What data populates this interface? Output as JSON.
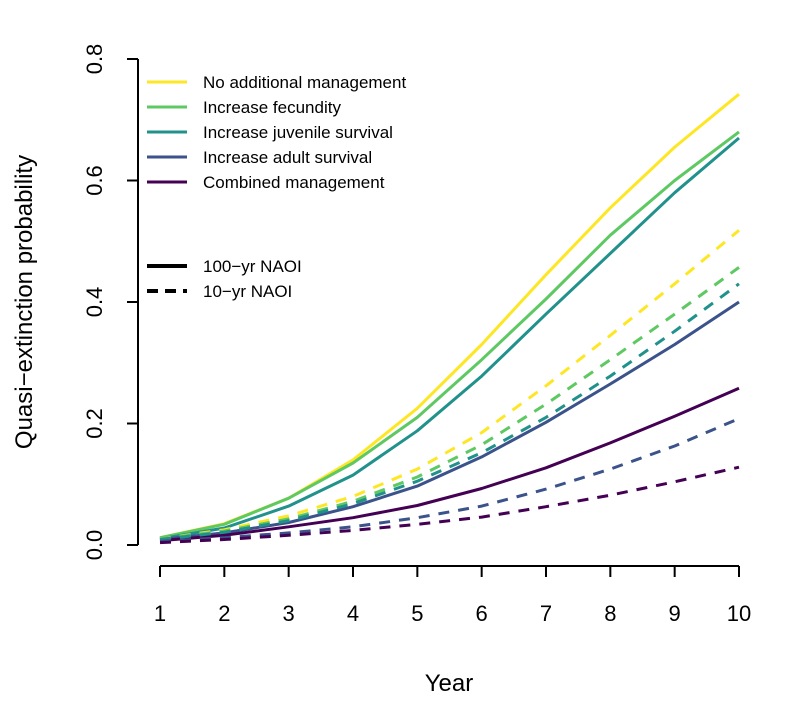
{
  "chart_data": {
    "type": "line",
    "xlabel": "Year",
    "ylabel": "Quasi−extinction probability",
    "x": [
      1,
      2,
      3,
      4,
      5,
      6,
      7,
      8,
      9,
      10
    ],
    "xlim": [
      1,
      10
    ],
    "ylim": [
      0,
      0.8
    ],
    "xticks": [
      "1",
      "2",
      "3",
      "4",
      "5",
      "6",
      "7",
      "8",
      "9",
      "10"
    ],
    "yticks": [
      "0.0",
      "0.2",
      "0.4",
      "0.6",
      "0.8"
    ],
    "grid": false,
    "legend_position": "top-left",
    "series": [
      {
        "name": "No additional management",
        "color": "#FDE725",
        "style": "solid",
        "values": [
          0.012,
          0.035,
          0.077,
          0.14,
          0.225,
          0.33,
          0.445,
          0.555,
          0.655,
          0.742
        ]
      },
      {
        "name": "Increase fecundity",
        "color": "#5EC962",
        "style": "solid",
        "values": [
          0.012,
          0.034,
          0.077,
          0.135,
          0.21,
          0.305,
          0.405,
          0.51,
          0.6,
          0.68
        ]
      },
      {
        "name": "Increase juvenile survival",
        "color": "#21918C",
        "style": "solid",
        "values": [
          0.01,
          0.028,
          0.064,
          0.115,
          0.188,
          0.278,
          0.38,
          0.48,
          0.58,
          0.67
        ]
      },
      {
        "name": "Increase adult survival",
        "color": "#3B528B",
        "style": "solid",
        "values": [
          0.009,
          0.02,
          0.037,
          0.063,
          0.097,
          0.145,
          0.202,
          0.265,
          0.33,
          0.4
        ]
      },
      {
        "name": "Combined management",
        "color": "#440154",
        "style": "solid",
        "values": [
          0.007,
          0.016,
          0.03,
          0.045,
          0.065,
          0.093,
          0.127,
          0.168,
          0.212,
          0.258
        ]
      },
      {
        "name": "No additional management",
        "color": "#FDE725",
        "style": "dashed",
        "values": [
          0.01,
          0.025,
          0.048,
          0.08,
          0.125,
          0.185,
          0.262,
          0.345,
          0.43,
          0.518
        ]
      },
      {
        "name": "Increase fecundity",
        "color": "#5EC962",
        "style": "dashed",
        "values": [
          0.01,
          0.023,
          0.043,
          0.072,
          0.112,
          0.165,
          0.232,
          0.305,
          0.38,
          0.457
        ]
      },
      {
        "name": "Increase juvenile survival",
        "color": "#21918C",
        "style": "dashed",
        "values": [
          0.009,
          0.021,
          0.04,
          0.068,
          0.105,
          0.152,
          0.21,
          0.278,
          0.352,
          0.43
        ]
      },
      {
        "name": "Increase adult survival",
        "color": "#3B528B",
        "style": "dashed",
        "values": [
          0.006,
          0.012,
          0.02,
          0.03,
          0.045,
          0.064,
          0.092,
          0.125,
          0.163,
          0.208
        ]
      },
      {
        "name": "Combined management",
        "color": "#440154",
        "style": "dashed",
        "values": [
          0.004,
          0.009,
          0.016,
          0.024,
          0.034,
          0.046,
          0.063,
          0.082,
          0.104,
          0.128
        ]
      }
    ],
    "legend_colors": [
      {
        "label": "No additional management",
        "color": "#FDE725"
      },
      {
        "label": "Increase fecundity",
        "color": "#5EC962"
      },
      {
        "label": "Increase juvenile survival",
        "color": "#21918C"
      },
      {
        "label": "Increase adult survival",
        "color": "#3B528B"
      },
      {
        "label": "Combined management",
        "color": "#440154"
      }
    ],
    "legend_styles": [
      {
        "label": "100−yr NAOI",
        "style": "solid"
      },
      {
        "label": "10−yr NAOI",
        "style": "dashed"
      }
    ]
  }
}
